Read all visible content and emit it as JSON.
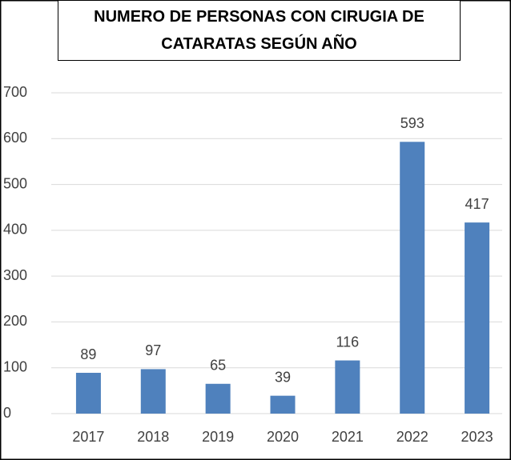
{
  "chart_data": {
    "type": "bar",
    "title": "NUMERO DE PERSONAS CON CIRUGIA DE CATARATAS SEGÚN AÑO",
    "categories": [
      "2017",
      "2018",
      "2019",
      "2020",
      "2021",
      "2022",
      "2023"
    ],
    "values": [
      89,
      97,
      65,
      39,
      116,
      593,
      417
    ],
    "color": "#4f81bd",
    "ylim": [
      0,
      700
    ],
    "yticks": [
      0,
      100,
      200,
      300,
      400,
      500,
      600,
      700
    ],
    "grid": true
  }
}
